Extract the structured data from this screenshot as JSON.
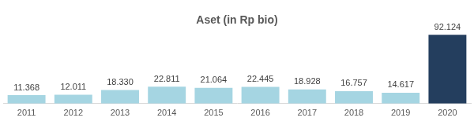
{
  "chart_data": {
    "type": "bar",
    "title": "Aset (in Rp bio)",
    "categories": [
      "2011",
      "2012",
      "2013",
      "2014",
      "2015",
      "2016",
      "2017",
      "2018",
      "2019",
      "2020"
    ],
    "values": [
      11368,
      12011,
      18330,
      22811,
      21064,
      22445,
      18928,
      16757,
      14617,
      92124
    ],
    "value_labels": [
      "11.368",
      "12.011",
      "18.330",
      "22.811",
      "21.064",
      "22.445",
      "18.928",
      "16.757",
      "14.617",
      "92.124"
    ],
    "colors": [
      "#a5d5e2",
      "#a5d5e2",
      "#a5d5e2",
      "#a5d5e2",
      "#a5d5e2",
      "#a5d5e2",
      "#a5d5e2",
      "#a5d5e2",
      "#a5d5e2",
      "#243e5e"
    ],
    "data_labels": true,
    "grid": false,
    "tick_labels": "x"
  }
}
